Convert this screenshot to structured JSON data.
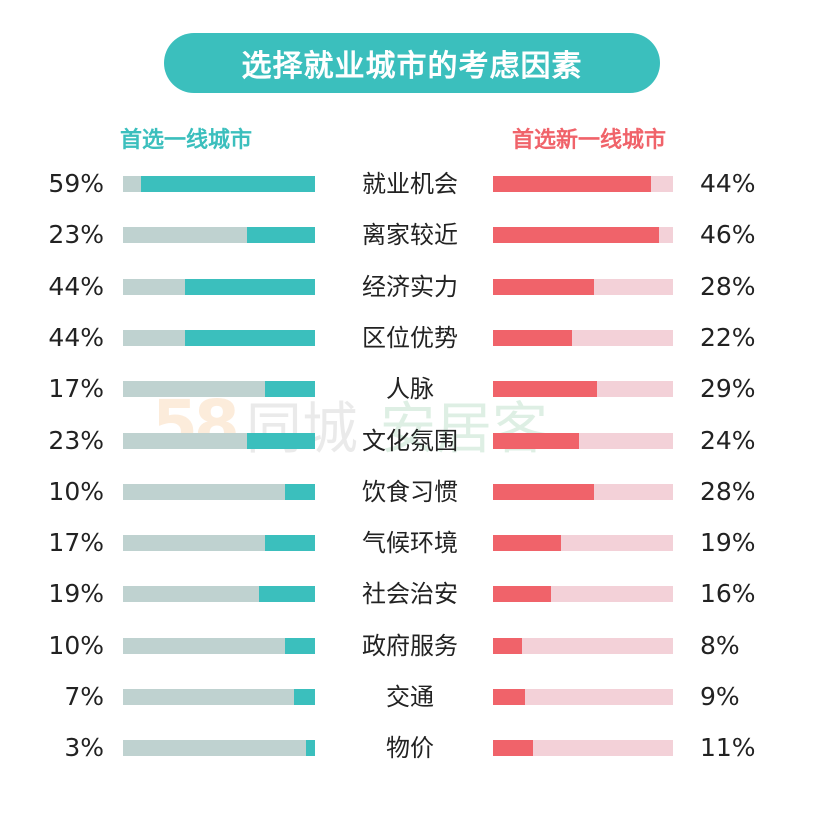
{
  "title": "选择就业城市的考虑因素",
  "watermark": {
    "digits": "58",
    "part1": "同城",
    "part2": "安居客"
  },
  "chart_data": {
    "type": "bar",
    "series": [
      {
        "name": "首选一线城市",
        "color": "#3bbfbd",
        "values": [
          59,
          23,
          44,
          44,
          17,
          23,
          10,
          17,
          19,
          10,
          7,
          3
        ],
        "labels": [
          "59%",
          "23%",
          "44%",
          "44%",
          "17%",
          "23%",
          "10%",
          "17%",
          "19%",
          "10%",
          "7%",
          "3%"
        ]
      },
      {
        "name": "首选新一线城市",
        "color": "#f0636a",
        "values": [
          44,
          46,
          28,
          22,
          29,
          24,
          28,
          19,
          16,
          8,
          9,
          11
        ],
        "labels": [
          "44%",
          "46%",
          "28%",
          "22%",
          "29%",
          "24%",
          "28%",
          "19%",
          "16%",
          "8%",
          "9%",
          "11%"
        ]
      }
    ],
    "categories": [
      "就业机会",
      "离家较近",
      "经济实力",
      "区位优势",
      "人脉",
      "文化氛围",
      "饮食习惯",
      "气候环境",
      "社会治安",
      "政府服务",
      "交通",
      "物价"
    ],
    "left_axis_max": 65,
    "right_axis_max": 50
  }
}
